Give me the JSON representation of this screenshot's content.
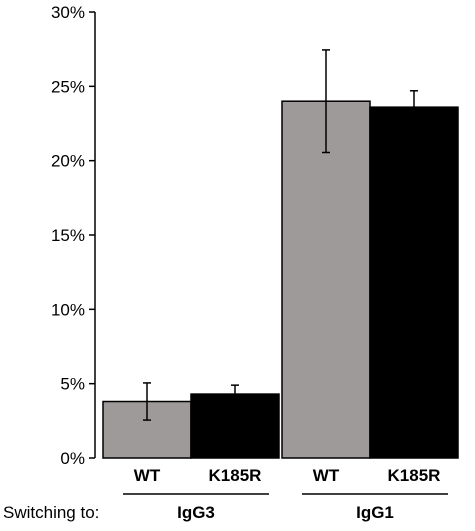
{
  "chart_data": {
    "type": "bar",
    "title": "",
    "xlabel": "",
    "ylabel": "",
    "ylim": [
      0,
      30
    ],
    "y_ticks": [
      "0%",
      "5%",
      "10%",
      "15%",
      "20%",
      "25%",
      "30%"
    ],
    "y_tick_values": [
      0,
      5,
      10,
      15,
      20,
      25,
      30
    ],
    "x_prefix_label": "Switching to:",
    "groups": [
      {
        "label": "IgG3",
        "bars": [
          {
            "category": "WT",
            "value": 3.8,
            "error": 1.25,
            "color": "#9e9a99"
          },
          {
            "category": "K185R",
            "value": 4.3,
            "error": 0.6,
            "color": "#000000"
          }
        ]
      },
      {
        "label": "IgG1",
        "bars": [
          {
            "category": "WT",
            "value": 24.0,
            "error": 3.45,
            "color": "#9e9a99"
          },
          {
            "category": "K185R",
            "value": 23.6,
            "error": 1.1,
            "color": "#000000"
          }
        ]
      }
    ],
    "legend": "none",
    "grid": false
  }
}
